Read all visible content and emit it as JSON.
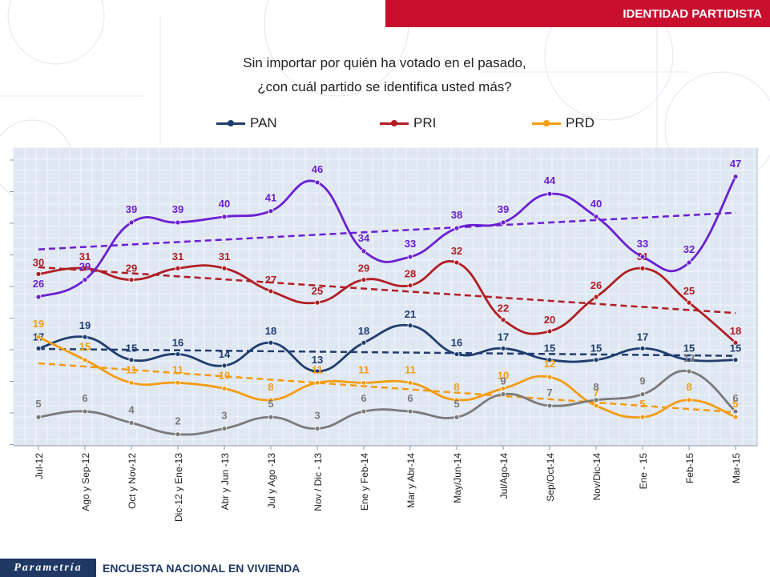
{
  "header": {
    "banner": "IDENTIDAD PARTIDISTA"
  },
  "question": {
    "line1": "Sin importar por quién ha votado en el pasado,",
    "line2": "¿con cuál partido se identifica usted más?"
  },
  "legend": [
    {
      "label": "PAN",
      "color": "#1f3d6e"
    },
    {
      "label": "PRI",
      "color": "#b01e23"
    },
    {
      "label": "PRD",
      "color": "#f39c12"
    }
  ],
  "footer": {
    "logo": "Parametría",
    "text": "ENCUESTA NACIONAL  EN VIVIENDA"
  },
  "chart_data": {
    "type": "line",
    "categories": [
      "Jul-12",
      "Ago y Sep-12",
      "Oct y Nov-12",
      "Dic-12 y Ene-13",
      "Abr y Jun -13",
      "Jul y Ago -13",
      "Nov / Dic - 13",
      "Ene y Feb-14",
      "Mar y Abr-14",
      "May/Jun-14",
      "Jul/Ago-14",
      "Sep/Oct-14",
      "Nov/Dic-14",
      "Ene - 15",
      "Feb-15",
      "Mar-15"
    ],
    "series": [
      {
        "name": "PAN",
        "color": "#1f3d6e",
        "trend": true,
        "values": [
          17,
          19,
          15,
          16,
          14,
          18,
          13,
          18,
          21,
          16,
          17,
          15,
          15,
          17,
          15,
          15
        ]
      },
      {
        "name": "PRI",
        "color": "#b01e23",
        "trend": true,
        "values": [
          30,
          31,
          29,
          31,
          31,
          27,
          25,
          29,
          28,
          32,
          22,
          20,
          26,
          31,
          25,
          18
        ]
      },
      {
        "name": "PRD",
        "color": "#f39c12",
        "trend": true,
        "values": [
          19,
          15,
          11,
          11,
          10,
          8,
          11,
          11,
          11,
          8,
          10,
          12,
          7,
          5,
          8,
          5
        ]
      },
      {
        "color": "#7a7a7a",
        "trend": false,
        "values": [
          5,
          6,
          4,
          2,
          3,
          5,
          3,
          6,
          6,
          5,
          9,
          7,
          8,
          9,
          13,
          6
        ]
      },
      {
        "color": "#6a1fd1",
        "trend": true,
        "values": [
          26,
          29,
          39,
          39,
          40,
          41,
          46,
          34,
          33,
          38,
          39,
          44,
          40,
          33,
          32,
          47
        ]
      }
    ],
    "ylim": [
      0,
      52
    ],
    "grid": true
  }
}
